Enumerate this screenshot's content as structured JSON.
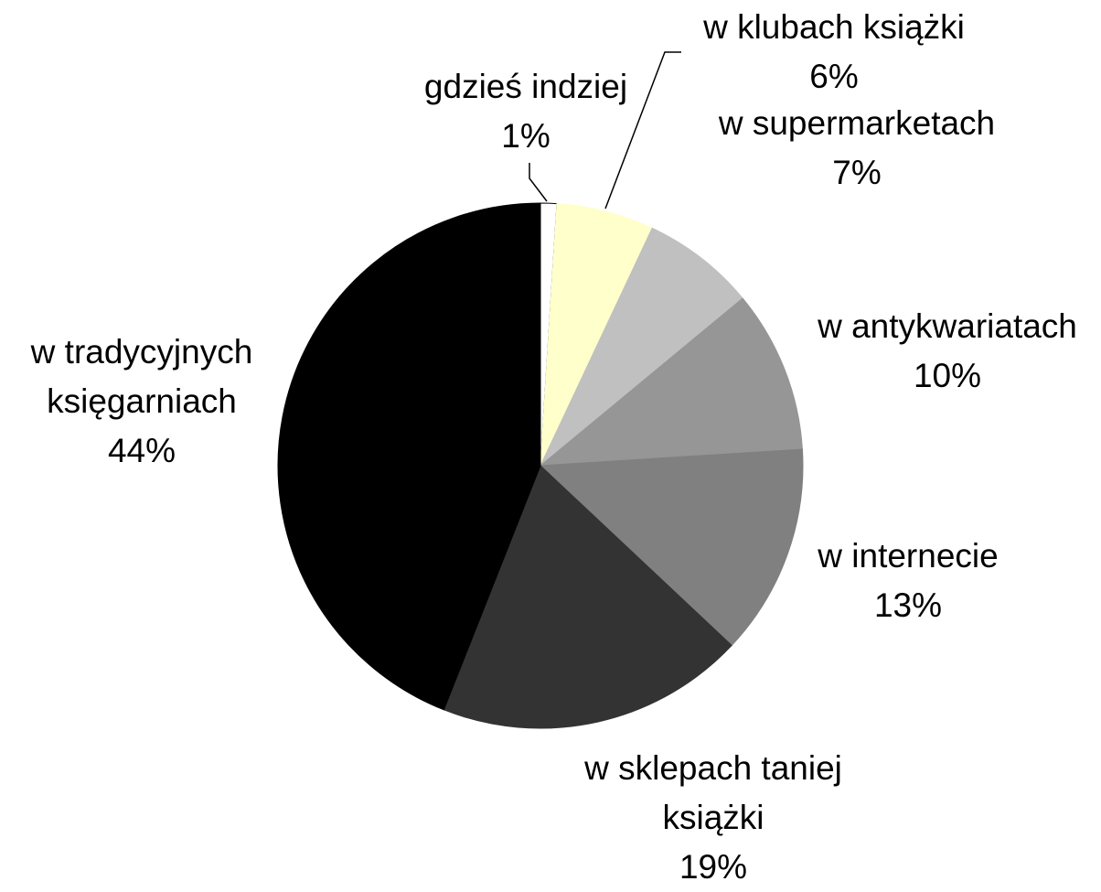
{
  "chart_data": {
    "type": "pie",
    "categories": [
      "gdzieś indziej",
      "w klubach książki",
      "w supermarketach",
      "w antykwariatach",
      "w internecie",
      "w sklepach taniej książki",
      "w tradycyjnych księgarniach"
    ],
    "values": [
      1,
      6,
      7,
      10,
      13,
      19,
      44
    ],
    "value_labels": [
      "1%",
      "6%",
      "7%",
      "10%",
      "13%",
      "19%",
      "44%"
    ],
    "colors": [
      "#ffffff",
      "#ffffcc",
      "#c0c0c0",
      "#969696",
      "#808080",
      "#333333",
      "#000000"
    ]
  }
}
